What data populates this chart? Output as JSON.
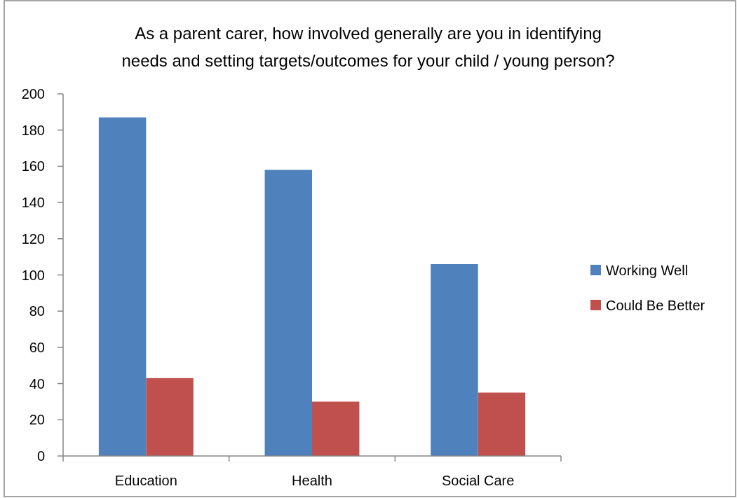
{
  "chart_data": {
    "type": "bar",
    "title": "As a parent carer, how involved generally are you in identifying needs and setting targets/outcomes for your child / young person?",
    "categories": [
      "Education",
      "Health",
      "Social Care"
    ],
    "series": [
      {
        "name": "Working Well",
        "color": "#4f81bd",
        "values": [
          187,
          158,
          106
        ]
      },
      {
        "name": "Could Be Better",
        "color": "#c0504d",
        "values": [
          43,
          30,
          35
        ]
      }
    ],
    "ylim": [
      0,
      200
    ],
    "yticks": [
      0,
      20,
      40,
      60,
      80,
      100,
      120,
      140,
      160,
      180,
      200
    ],
    "legend": "right"
  }
}
